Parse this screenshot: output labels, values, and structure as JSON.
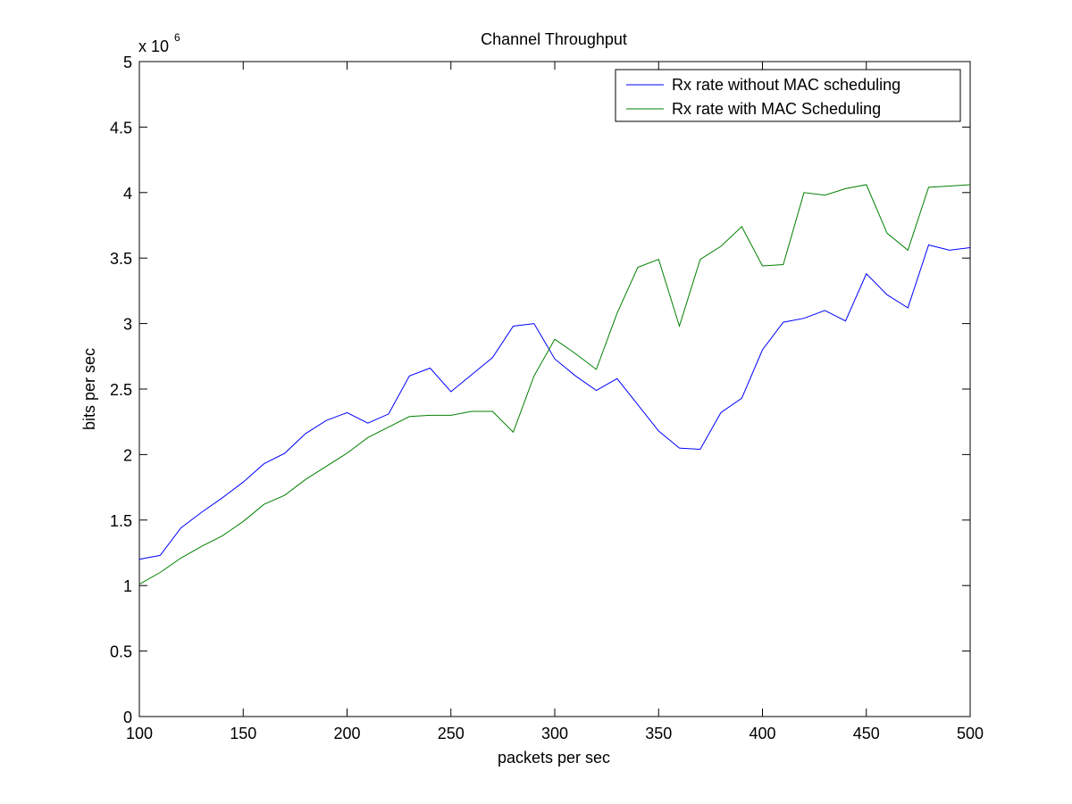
{
  "chart_data": {
    "type": "line",
    "title": "Channel Throughput",
    "xlabel": "packets per sec",
    "ylabel": "bits per sec",
    "y_multiplier_base": "x 10",
    "y_multiplier_exponent": "6",
    "xlim": [
      100,
      500
    ],
    "ylim": [
      0,
      5
    ],
    "xticks": [
      100,
      150,
      200,
      250,
      300,
      350,
      400,
      450,
      500
    ],
    "yticks": [
      0,
      0.5,
      1,
      1.5,
      2,
      2.5,
      3,
      3.5,
      4,
      4.5,
      5
    ],
    "ytick_labels": [
      "0",
      "0.5",
      "1",
      "1.5",
      "2",
      "2.5",
      "3",
      "3.5",
      "4",
      "4.5",
      "5"
    ],
    "grid": false,
    "legend_position": "top-right",
    "x": [
      100,
      110,
      120,
      130,
      140,
      150,
      160,
      170,
      180,
      190,
      200,
      210,
      220,
      230,
      240,
      250,
      260,
      270,
      280,
      290,
      300,
      310,
      320,
      330,
      340,
      350,
      360,
      370,
      380,
      390,
      400,
      410,
      420,
      430,
      440,
      450,
      460,
      470,
      480,
      490,
      500
    ],
    "series": [
      {
        "name": "Rx rate without MAC scheduling",
        "color": "#0000ff",
        "values": [
          1.2,
          1.23,
          1.44,
          1.56,
          1.67,
          1.79,
          1.93,
          2.01,
          2.16,
          2.26,
          2.32,
          2.24,
          2.31,
          2.6,
          2.66,
          2.48,
          2.61,
          2.74,
          2.98,
          3.0,
          2.73,
          2.6,
          2.49,
          2.58,
          2.38,
          2.18,
          2.05,
          2.04,
          2.32,
          2.43,
          2.8,
          3.01,
          3.04,
          3.1,
          3.02,
          3.38,
          3.22,
          3.12,
          3.6,
          3.56,
          3.58
        ]
      },
      {
        "name": "Rx rate with MAC Scheduling",
        "color": "#008000",
        "values": [
          1.01,
          1.1,
          1.21,
          1.3,
          1.38,
          1.49,
          1.62,
          1.69,
          1.81,
          1.91,
          2.01,
          2.13,
          2.21,
          2.29,
          2.3,
          2.3,
          2.33,
          2.33,
          2.17,
          2.6,
          2.88,
          2.77,
          2.65,
          3.08,
          3.43,
          3.49,
          2.98,
          3.49,
          3.59,
          3.74,
          3.44,
          3.45,
          4.0,
          3.98,
          4.03,
          4.06,
          3.69,
          3.56,
          4.04,
          4.05,
          4.06
        ]
      }
    ]
  }
}
